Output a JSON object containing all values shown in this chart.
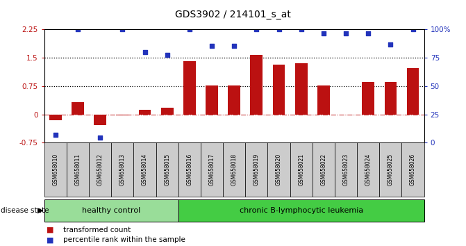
{
  "title": "GDS3902 / 214101_s_at",
  "samples": [
    "GSM658010",
    "GSM658011",
    "GSM658012",
    "GSM658013",
    "GSM658014",
    "GSM658015",
    "GSM658016",
    "GSM658017",
    "GSM658018",
    "GSM658019",
    "GSM658020",
    "GSM658021",
    "GSM658022",
    "GSM658023",
    "GSM658024",
    "GSM658025",
    "GSM658026"
  ],
  "bar_values": [
    -0.15,
    0.32,
    -0.28,
    -0.02,
    0.13,
    0.18,
    1.42,
    0.77,
    0.77,
    1.57,
    1.32,
    1.35,
    0.77,
    0.0,
    0.85,
    0.85,
    1.22
  ],
  "dot_values_left": [
    -0.55,
    2.25,
    -0.62,
    2.25,
    1.65,
    1.57,
    2.25,
    1.82,
    1.82,
    2.25,
    2.25,
    2.25,
    2.15,
    2.15,
    2.15,
    1.85,
    2.25
  ],
  "bar_color": "#bb1111",
  "dot_color": "#2233bb",
  "ylim_left": [
    -0.75,
    2.25
  ],
  "ylim_right": [
    0,
    100
  ],
  "yticks_left": [
    -0.75,
    0.0,
    0.75,
    1.5,
    2.25
  ],
  "ytick_labels_left": [
    "-0.75",
    "0",
    "0.75",
    "1.5",
    "2.25"
  ],
  "yticks_right": [
    0,
    25,
    50,
    75,
    100
  ],
  "ytick_labels_right": [
    "0",
    "25",
    "50",
    "75",
    "100%"
  ],
  "hlines": [
    0.75,
    1.5
  ],
  "healthy_count": 6,
  "disease_label_healthy": "healthy control",
  "disease_label_disease": "chronic B-lymphocytic leukemia",
  "disease_state_label": "disease state",
  "legend_bar": "transformed count",
  "legend_dot": "percentile rank within the sample",
  "healthy_color": "#99dd99",
  "disease_color": "#44cc44",
  "sample_bg_color": "#cccccc",
  "plot_bg_color": "#ffffff"
}
